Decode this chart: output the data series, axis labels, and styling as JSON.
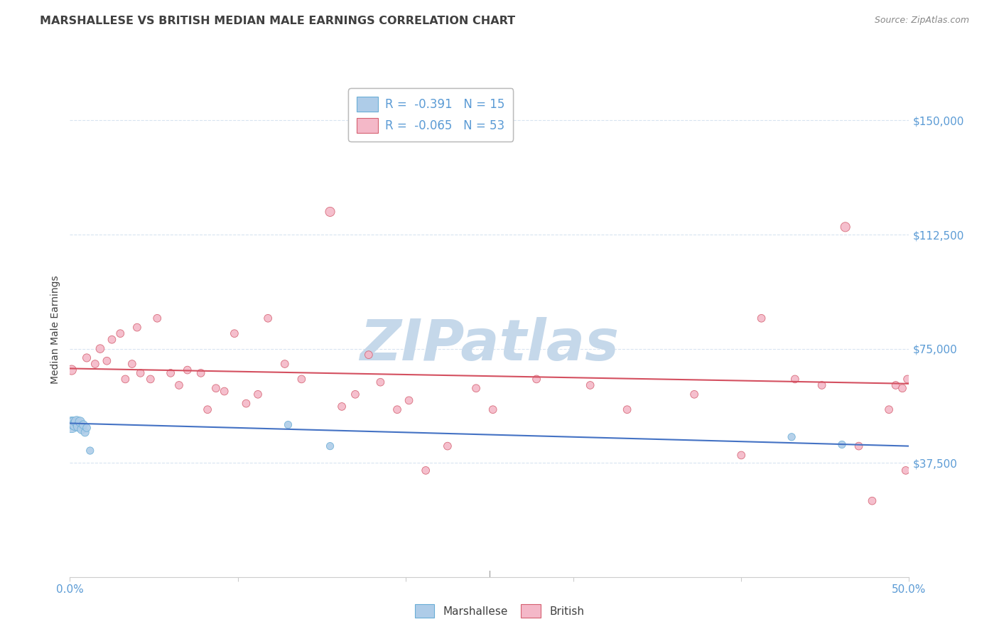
{
  "title": "MARSHALLESE VS BRITISH MEDIAN MALE EARNINGS CORRELATION CHART",
  "source": "Source: ZipAtlas.com",
  "ylabel": "Median Male Earnings",
  "xlim": [
    0,
    0.5
  ],
  "ylim": [
    0,
    162500
  ],
  "yticks": [
    37500,
    75000,
    112500,
    150000
  ],
  "ytick_labels": [
    "$37,500",
    "$75,000",
    "$112,500",
    "$150,000"
  ],
  "xticks": [
    0.0,
    0.1,
    0.2,
    0.3,
    0.4,
    0.5
  ],
  "xtick_labels": [
    "0.0%",
    "",
    "",
    "",
    "",
    "50.0%"
  ],
  "background_color": "#ffffff",
  "watermark_text": "ZIPatlas",
  "watermark_color": "#c5d8ea",
  "grid_color": "#d8e4f0",
  "label_color": "#5b9bd5",
  "title_color": "#404040",
  "source_color": "#888888",
  "marshallese_color": "#aecce8",
  "marshallese_edge": "#6aaed6",
  "british_color": "#f4b8c8",
  "british_edge": "#d46070",
  "trend_blue": "#4472c4",
  "trend_pink": "#d45060",
  "legend_r1": "R =  -0.391   N = 15",
  "legend_r2": "R =  -0.065   N = 53",
  "marshallese_x": [
    0.001,
    0.002,
    0.003,
    0.004,
    0.005,
    0.006,
    0.007,
    0.008,
    0.009,
    0.01,
    0.012,
    0.13,
    0.155,
    0.43,
    0.46
  ],
  "marshallese_y": [
    50000,
    50500,
    50000,
    51000,
    49500,
    51000,
    48500,
    50000,
    47500,
    49000,
    41500,
    50000,
    43000,
    46000,
    43500
  ],
  "marshallese_size": [
    250,
    150,
    130,
    120,
    100,
    90,
    80,
    70,
    65,
    60,
    55,
    55,
    55,
    55,
    55
  ],
  "british_x": [
    0.001,
    0.01,
    0.015,
    0.018,
    0.022,
    0.025,
    0.03,
    0.033,
    0.037,
    0.04,
    0.042,
    0.048,
    0.052,
    0.06,
    0.065,
    0.07,
    0.078,
    0.082,
    0.087,
    0.092,
    0.098,
    0.105,
    0.112,
    0.118,
    0.128,
    0.138,
    0.155,
    0.162,
    0.17,
    0.178,
    0.185,
    0.195,
    0.202,
    0.212,
    0.225,
    0.242,
    0.252,
    0.278,
    0.31,
    0.332,
    0.372,
    0.4,
    0.412,
    0.432,
    0.448,
    0.462,
    0.47,
    0.478,
    0.488,
    0.492,
    0.496,
    0.498,
    0.499
  ],
  "british_y": [
    68000,
    72000,
    70000,
    75000,
    71000,
    78000,
    80000,
    65000,
    70000,
    82000,
    67000,
    65000,
    85000,
    67000,
    63000,
    68000,
    67000,
    55000,
    62000,
    61000,
    80000,
    57000,
    60000,
    85000,
    70000,
    65000,
    120000,
    56000,
    60000,
    73000,
    64000,
    55000,
    58000,
    35000,
    43000,
    62000,
    55000,
    65000,
    63000,
    55000,
    60000,
    40000,
    85000,
    65000,
    63000,
    115000,
    43000,
    25000,
    55000,
    63000,
    62000,
    35000,
    65000
  ],
  "british_size": [
    90,
    65,
    60,
    70,
    60,
    60,
    60,
    60,
    60,
    60,
    60,
    60,
    60,
    60,
    60,
    60,
    60,
    60,
    60,
    60,
    60,
    60,
    60,
    60,
    60,
    60,
    90,
    60,
    60,
    60,
    60,
    60,
    60,
    60,
    60,
    60,
    60,
    60,
    60,
    60,
    60,
    60,
    60,
    60,
    60,
    90,
    60,
    60,
    60,
    60,
    60,
    60,
    60
  ],
  "blue_line_x": [
    0.0,
    0.5
  ],
  "blue_line_y": [
    50500,
    43000
  ],
  "pink_line_x": [
    0.0,
    0.5
  ],
  "pink_line_y": [
    68500,
    63500
  ]
}
